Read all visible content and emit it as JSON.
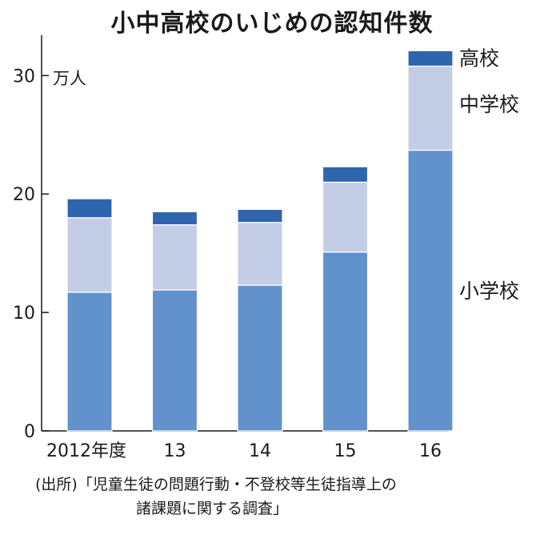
{
  "chart_data": {
    "type": "bar",
    "stacked": true,
    "title": "小中高校のいじめの認知件数",
    "unit_label": "万人",
    "categories": [
      "2012年度",
      "13",
      "14",
      "15",
      "16"
    ],
    "series": [
      {
        "name": "小学校",
        "values": [
          11.7,
          11.9,
          12.3,
          15.1,
          23.7
        ],
        "color": "#6192cc"
      },
      {
        "name": "中学校",
        "values": [
          6.3,
          5.5,
          5.3,
          5.9,
          7.1
        ],
        "color": "#c3cde6"
      },
      {
        "name": "高校",
        "values": [
          1.6,
          1.1,
          1.1,
          1.3,
          1.3
        ],
        "color": "#2f65ae"
      }
    ],
    "yticks": [
      0,
      10,
      20,
      30
    ],
    "ylim": [
      0,
      33
    ],
    "grid": false
  },
  "source": {
    "line1": "(出所)「児童生徒の問題行動・不登校等生徒指導上の",
    "line2": "諸課題に関する調査」"
  }
}
